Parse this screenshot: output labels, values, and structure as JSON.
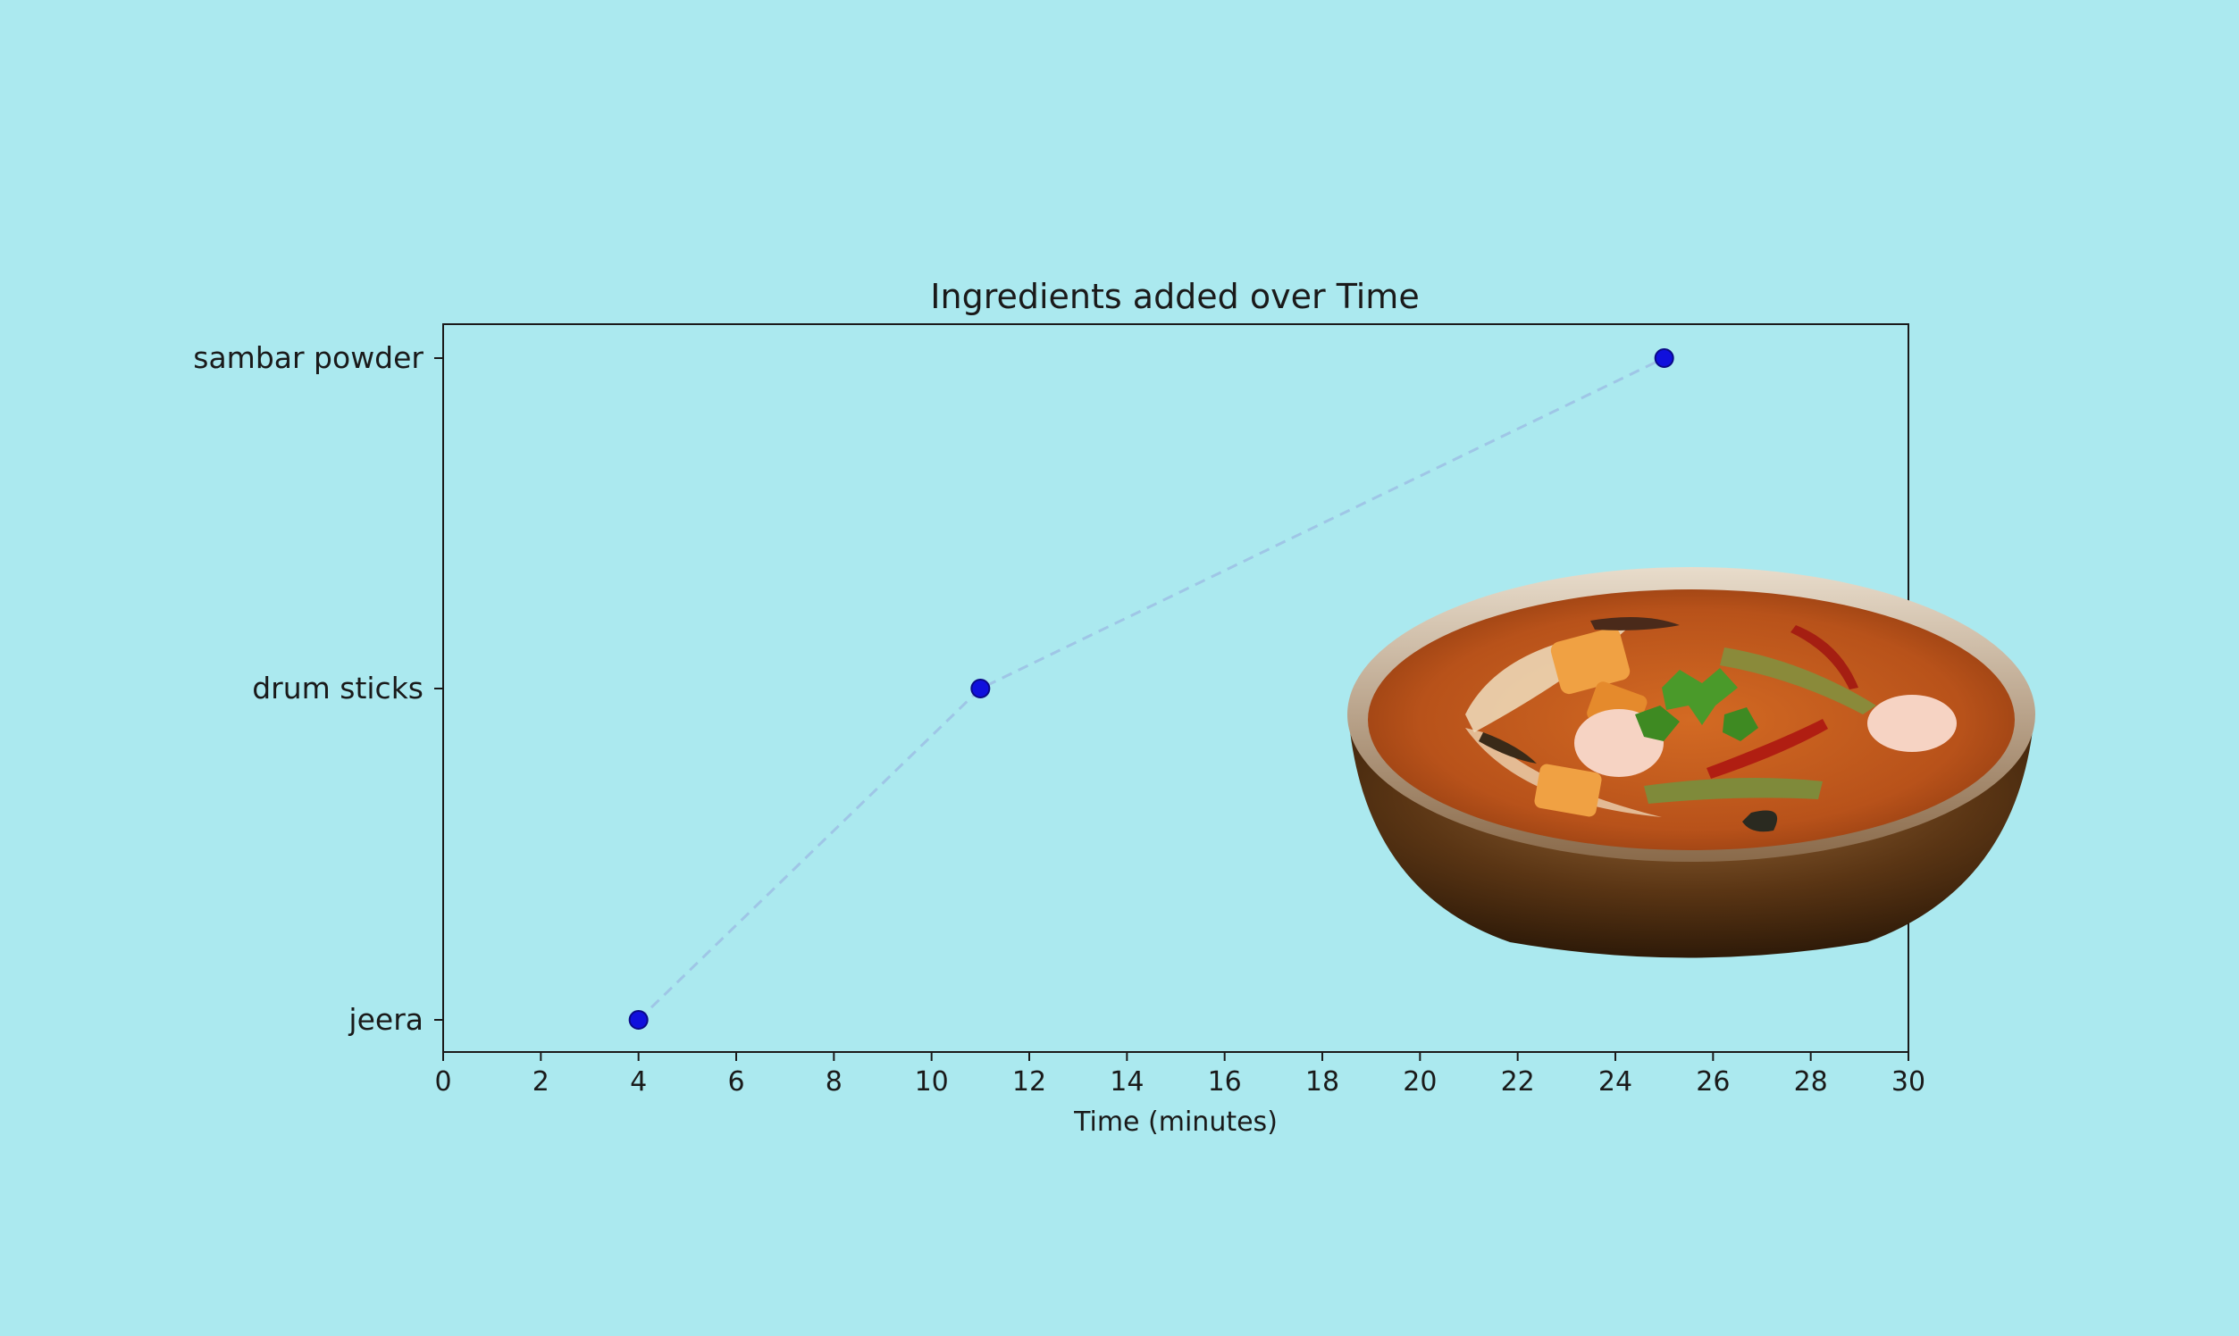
{
  "chart_data": {
    "type": "scatter",
    "title": "Ingredients added over Time",
    "xlabel": "Time (minutes)",
    "ylabel": "",
    "xlim": [
      0,
      30
    ],
    "xticks": [
      0,
      2,
      4,
      6,
      8,
      10,
      12,
      14,
      16,
      18,
      20,
      22,
      24,
      26,
      28,
      30
    ],
    "categories": [
      "jeera",
      "drum sticks",
      "sambar powder"
    ],
    "points": [
      {
        "x": 4,
        "y": "jeera"
      },
      {
        "x": 11,
        "y": "drum sticks"
      },
      {
        "x": 25,
        "y": "sambar powder"
      }
    ],
    "connector": "dashed",
    "grid": false,
    "colors": {
      "background": "#abe9ef",
      "marker": "#1010dd",
      "connector": "#9fc6e6",
      "axis": "#1a1a1a"
    }
  },
  "overlay_image": {
    "icon": "sambar-bowl-icon"
  }
}
